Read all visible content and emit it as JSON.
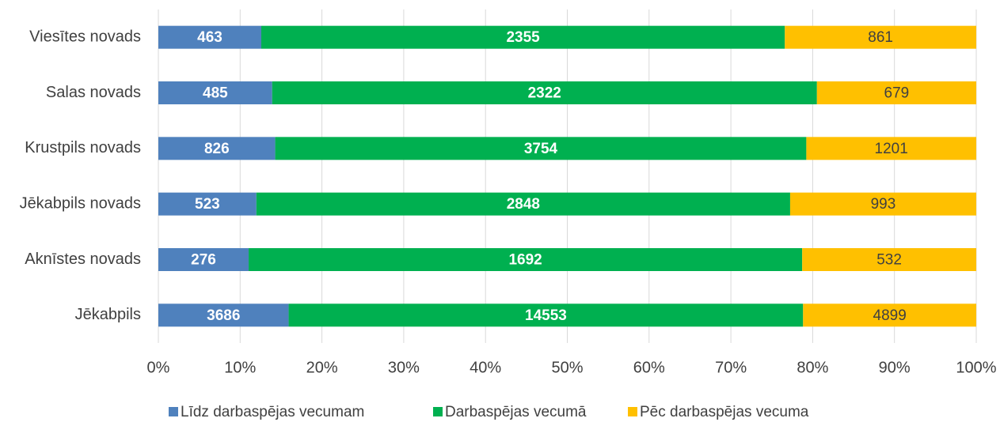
{
  "chart_data": {
    "type": "bar",
    "orientation": "horizontal",
    "stacking": "percent",
    "categories": [
      "Viesītes novads",
      "Salas novads",
      "Krustpils novads",
      "Jēkabpils novads",
      "Aknīstes novads",
      "Jēkabpils"
    ],
    "series": [
      {
        "name": "Līdz darbaspējas vecumam",
        "color": "#4f81bd",
        "values": [
          463,
          485,
          826,
          523,
          276,
          3686
        ]
      },
      {
        "name": "Darbaspējas vecumā",
        "color": "#00b050",
        "values": [
          2355,
          2322,
          3754,
          2848,
          1692,
          14553
        ]
      },
      {
        "name": "Pēc darbaspējas vecuma",
        "color": "#ffc000",
        "values": [
          861,
          679,
          1201,
          993,
          532,
          4899
        ]
      }
    ],
    "xlim": [
      0,
      100
    ],
    "xticks": [
      {
        "value": 0,
        "label": "0%"
      },
      {
        "value": 10,
        "label": "10%"
      },
      {
        "value": 20,
        "label": "20%"
      },
      {
        "value": 30,
        "label": "30%"
      },
      {
        "value": 40,
        "label": "40%"
      },
      {
        "value": 50,
        "label": "50%"
      },
      {
        "value": 60,
        "label": "60%"
      },
      {
        "value": 70,
        "label": "70%"
      },
      {
        "value": 80,
        "label": "80%"
      },
      {
        "value": 90,
        "label": "90%"
      },
      {
        "value": 100,
        "label": "100%"
      }
    ],
    "grid": true,
    "legend": "bottom"
  }
}
